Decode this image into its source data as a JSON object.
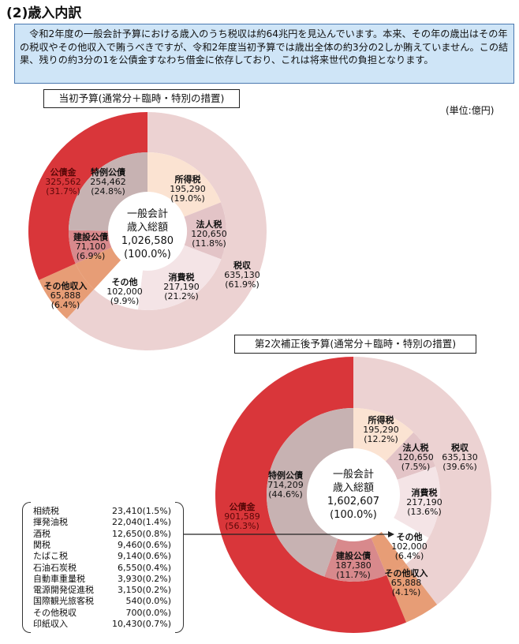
{
  "heading": "(2)歳入内訳",
  "intro": "　令和2年度の一般会計予算における歳入のうち税収は約64兆円を見込んでいます。本来、その年の歳出はその年の税収やその他収入で賄うべきですが、令和2年度当初予算では歳出全体の約3分の2しか賄えていません。この結果、残りの約3分の1を公債金すなわち借金に依存しており、これは将来世代の負担となります。",
  "unit": "(単位:億円)",
  "colors": {
    "red": "#d9363a",
    "tax": "#ecd2d2",
    "shotoku": "#fbe3d2",
    "hojin": "#e3c4c7",
    "shohi": "#f4e4e6",
    "sonota": "#ffffff",
    "other_rev": "#e79d76",
    "kensetsu": "#d8898c",
    "tokurei": "#c7b2b2"
  },
  "chart_data": [
    {
      "type": "pie",
      "title": "当初予算(通常分＋臨時・特別の措置)",
      "center": {
        "line1": "一般会計",
        "line2": "歳入総額",
        "value": "1,026,580",
        "pct": "(100.0%)"
      },
      "outer": [
        {
          "name": "税収",
          "value": "635,130",
          "pct": "(61.9%)",
          "color": "tax"
        },
        {
          "name": "その他収入",
          "value": "65,888",
          "pct": "(6.4%)",
          "color": "other_rev"
        },
        {
          "name": "公債金",
          "value": "325,562",
          "pct": "(31.7%)",
          "color": "red"
        }
      ],
      "inner": [
        {
          "name": "所得税",
          "value": "195,290",
          "pct": "(19.0%)",
          "color": "shotoku"
        },
        {
          "name": "法人税",
          "value": "120,650",
          "pct": "(11.8%)",
          "color": "hojin"
        },
        {
          "name": "消費税",
          "value": "217,190",
          "pct": "(21.2%)",
          "color": "shohi"
        },
        {
          "name": "その他",
          "value": "102,000",
          "pct": "(9.9%)",
          "color": "sonota"
        },
        {
          "name": "その他収入",
          "value": "65,888",
          "pct": "(6.4%)",
          "color": "other_rev"
        },
        {
          "name": "建設公債",
          "value": "71,100",
          "pct": "(6.9%)",
          "color": "kensetsu"
        },
        {
          "name": "特例公債",
          "value": "254,462",
          "pct": "(24.8%)",
          "color": "tokurei"
        }
      ]
    },
    {
      "type": "pie",
      "title": "第2次補正後予算(通常分＋臨時・特別の措置)",
      "center": {
        "line1": "一般会計",
        "line2": "歳入総額",
        "value": "1,602,607",
        "pct": "(100.0%)"
      },
      "outer": [
        {
          "name": "税収",
          "value": "635,130",
          "pct": "(39.6%)",
          "color": "tax"
        },
        {
          "name": "その他収入",
          "value": "65,888",
          "pct": "(4.1%)",
          "color": "other_rev"
        },
        {
          "name": "公債金",
          "value": "901,589",
          "pct": "(56.3%)",
          "color": "red"
        }
      ],
      "inner": [
        {
          "name": "所得税",
          "value": "195,290",
          "pct": "(12.2%)",
          "color": "shotoku"
        },
        {
          "name": "法人税",
          "value": "120,650",
          "pct": "(7.5%)",
          "color": "hojin"
        },
        {
          "name": "消費税",
          "value": "217,190",
          "pct": "(13.6%)",
          "color": "shohi"
        },
        {
          "name": "その他",
          "value": "102,000",
          "pct": "(6.4%)",
          "color": "sonota"
        },
        {
          "name": "その他収入",
          "value": "65,888",
          "pct": "(4.1%)",
          "color": "other_rev"
        },
        {
          "name": "建設公債",
          "value": "187,380",
          "pct": "(11.7%)",
          "color": "kensetsu"
        },
        {
          "name": "特例公債",
          "value": "714,209",
          "pct": "(44.6%)",
          "color": "tokurei"
        }
      ]
    }
  ],
  "other_tax_list": [
    {
      "name": "相続税",
      "value": "23,410(1.5%)"
    },
    {
      "name": "揮発油税",
      "value": "22,040(1.4%)"
    },
    {
      "name": "酒税",
      "value": "12,650(0.8%)"
    },
    {
      "name": "関税",
      "value": "9,460(0.6%)"
    },
    {
      "name": "たばこ税",
      "value": "9,140(0.6%)"
    },
    {
      "name": "石油石炭税",
      "value": "6,550(0.4%)"
    },
    {
      "name": "自動車重量税",
      "value": "3,930(0.2%)"
    },
    {
      "name": "電源開発促進税",
      "value": "3,150(0.2%)"
    },
    {
      "name": "国際観光旅客税",
      "value": "540(0.0%)"
    },
    {
      "name": "その他税収",
      "value": "700(0.0%)"
    },
    {
      "name": "印紙収入",
      "value": "10,430(0.7%)"
    }
  ]
}
